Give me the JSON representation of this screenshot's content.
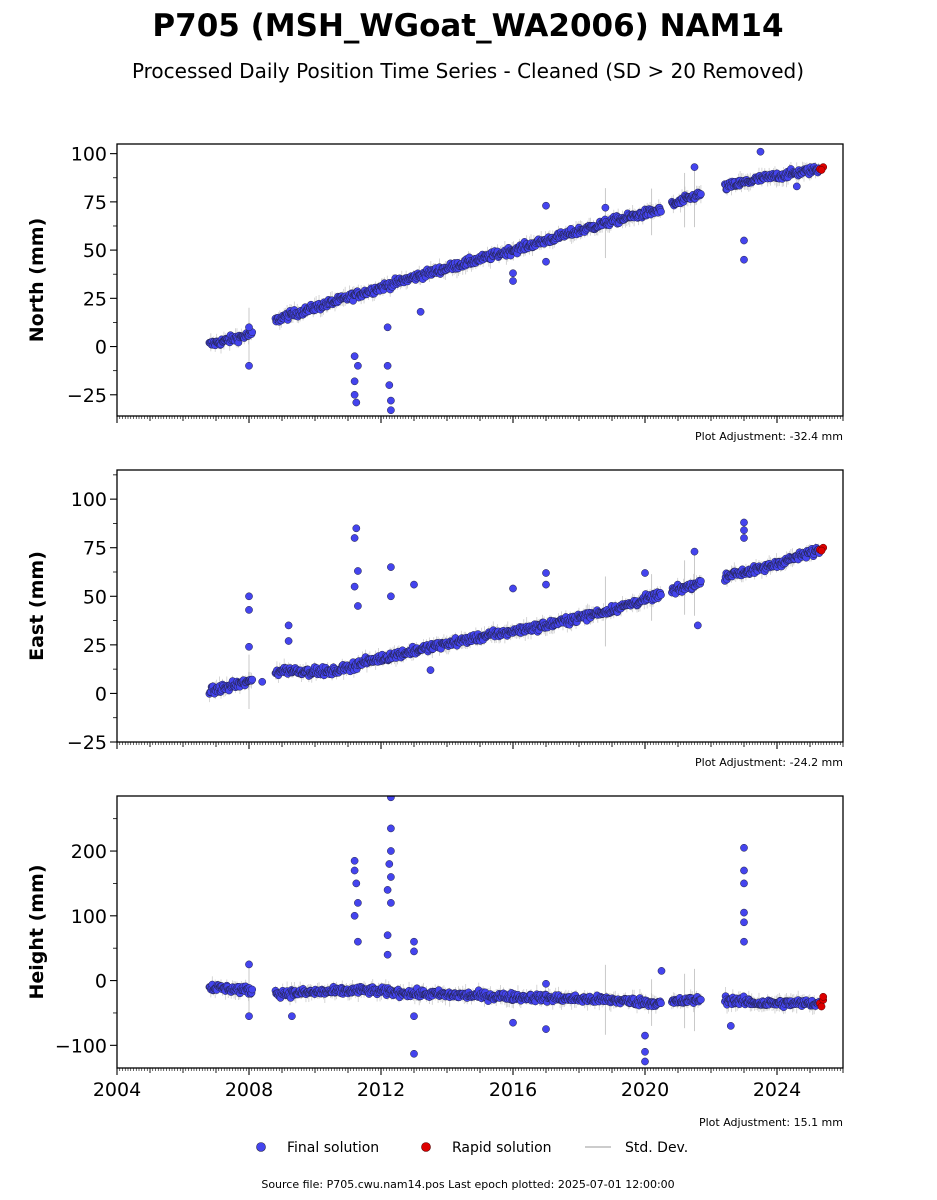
{
  "title": "P705 (MSH_WGoat_WA2006) NAM14",
  "subtitle": "Processed Daily Position Time Series - Cleaned (SD > 20 Removed)",
  "source_text": "Source file: P705.cwu.nam14.pos  Last epoch plotted: 2025-07-01 12:00:00",
  "legend": {
    "final": "Final solution",
    "rapid": "Rapid solution",
    "std": "Std. Dev."
  },
  "colors": {
    "final": "#4444ee",
    "final_edge": "#222244",
    "rapid": "#dd0000",
    "std": "#aaaaaa"
  },
  "chart_data": [
    {
      "type": "scatter",
      "ylabel": "North (mm)",
      "adjustment": "Plot Adjustment: -32.4 mm",
      "xlim": [
        2004,
        2026
      ],
      "ylim": [
        -36,
        105
      ],
      "yticks": [
        -25,
        0,
        25,
        50,
        75,
        100
      ],
      "yticklabels": [
        "−25",
        "0",
        "25",
        "50",
        "75",
        "100"
      ],
      "trend": [
        [
          2006.8,
          1
        ],
        [
          2008.0,
          6
        ],
        [
          2009.0,
          15
        ],
        [
          2011.5,
          28
        ],
        [
          2013.0,
          36
        ],
        [
          2016.0,
          50
        ],
        [
          2019.0,
          65
        ],
        [
          2020.5,
          71
        ],
        [
          2021.5,
          78
        ],
        [
          2022.5,
          83
        ],
        [
          2023.5,
          87
        ],
        [
          2025.3,
          92
        ]
      ],
      "gaps": [
        [
          2008.1,
          2008.8
        ],
        [
          2020.5,
          2020.8
        ],
        [
          2021.7,
          2022.4
        ]
      ],
      "outliers": [
        [
          2008.0,
          -10
        ],
        [
          2008.0,
          10
        ],
        [
          2011.2,
          -5
        ],
        [
          2011.2,
          -18
        ],
        [
          2011.2,
          -25
        ],
        [
          2011.25,
          -29
        ],
        [
          2011.3,
          -10
        ],
        [
          2012.2,
          10
        ],
        [
          2012.2,
          -10
        ],
        [
          2012.25,
          -20
        ],
        [
          2012.3,
          -33
        ],
        [
          2012.3,
          -28
        ],
        [
          2013.2,
          18
        ],
        [
          2016.0,
          38
        ],
        [
          2016.0,
          34
        ],
        [
          2017.0,
          44
        ],
        [
          2017.0,
          73
        ],
        [
          2018.8,
          72
        ],
        [
          2021.5,
          93
        ],
        [
          2023.0,
          45
        ],
        [
          2023.0,
          55
        ],
        [
          2023.5,
          101
        ],
        [
          2024.6,
          83
        ]
      ],
      "rapid": [
        [
          2025.3,
          92
        ],
        [
          2025.4,
          93
        ],
        [
          2025.35,
          91.5
        ]
      ]
    },
    {
      "type": "scatter",
      "ylabel": "East (mm)",
      "adjustment": "Plot Adjustment: -24.2 mm",
      "xlim": [
        2004,
        2026
      ],
      "ylim": [
        -25,
        115
      ],
      "yticks": [
        -25,
        0,
        25,
        50,
        75,
        100
      ],
      "yticklabels": [
        "−25",
        "0",
        "25",
        "50",
        "75",
        "100"
      ],
      "trend": [
        [
          2006.8,
          1
        ],
        [
          2008.0,
          6
        ],
        [
          2009.0,
          12
        ],
        [
          2010.5,
          11
        ],
        [
          2011.5,
          16
        ],
        [
          2013.0,
          22
        ],
        [
          2015.0,
          29
        ],
        [
          2017.0,
          35
        ],
        [
          2019.0,
          43
        ],
        [
          2020.5,
          51
        ],
        [
          2021.5,
          56
        ],
        [
          2022.5,
          61
        ],
        [
          2023.5,
          64
        ],
        [
          2025.3,
          74
        ]
      ],
      "gaps": [
        [
          2008.1,
          2008.8
        ],
        [
          2020.5,
          2020.8
        ],
        [
          2021.7,
          2022.4
        ]
      ],
      "outliers": [
        [
          2008.0,
          50
        ],
        [
          2008.0,
          43
        ],
        [
          2008.0,
          24
        ],
        [
          2008.4,
          6
        ],
        [
          2009.2,
          35
        ],
        [
          2009.2,
          27
        ],
        [
          2011.2,
          80
        ],
        [
          2011.25,
          85
        ],
        [
          2011.3,
          63
        ],
        [
          2011.3,
          45
        ],
        [
          2011.2,
          55
        ],
        [
          2012.3,
          65
        ],
        [
          2012.3,
          50
        ],
        [
          2013.0,
          56
        ],
        [
          2013.5,
          12
        ],
        [
          2016.0,
          54
        ],
        [
          2017.0,
          62
        ],
        [
          2017.0,
          56
        ],
        [
          2020.0,
          62
        ],
        [
          2021.5,
          73
        ],
        [
          2021.6,
          35
        ],
        [
          2023.0,
          88
        ],
        [
          2023.0,
          84
        ],
        [
          2023.0,
          80
        ]
      ],
      "rapid": [
        [
          2025.3,
          74
        ],
        [
          2025.4,
          75
        ],
        [
          2025.35,
          73.5
        ]
      ]
    },
    {
      "type": "scatter",
      "ylabel": "Height (mm)",
      "adjustment": "Plot Adjustment: 15.1 mm",
      "xlim": [
        2004,
        2026
      ],
      "ylim": [
        -135,
        285
      ],
      "yticks": [
        -100,
        0,
        100,
        200
      ],
      "yticklabels": [
        "−100",
        "0",
        "100",
        "200"
      ],
      "xticks": [
        2004,
        2008,
        2012,
        2016,
        2020,
        2024
      ],
      "xticklabels": [
        "2004",
        "2008",
        "2012",
        "2016",
        "2020",
        "2024"
      ],
      "trend": [
        [
          2006.8,
          -10
        ],
        [
          2008.0,
          -15
        ],
        [
          2009.0,
          -20
        ],
        [
          2011.5,
          -15
        ],
        [
          2013.0,
          -20
        ],
        [
          2016.0,
          -25
        ],
        [
          2019.0,
          -30
        ],
        [
          2020.5,
          -35
        ],
        [
          2021.5,
          -30
        ],
        [
          2022.5,
          -30
        ],
        [
          2023.5,
          -35
        ],
        [
          2025.3,
          -35
        ]
      ],
      "gaps": [
        [
          2008.1,
          2008.8
        ],
        [
          2020.5,
          2020.8
        ],
        [
          2021.7,
          2022.4
        ]
      ],
      "outliers": [
        [
          2008.0,
          25
        ],
        [
          2008.0,
          -55
        ],
        [
          2009.3,
          -55
        ],
        [
          2011.2,
          185
        ],
        [
          2011.2,
          170
        ],
        [
          2011.25,
          150
        ],
        [
          2011.3,
          120
        ],
        [
          2011.2,
          100
        ],
        [
          2011.3,
          60
        ],
        [
          2012.3,
          283
        ],
        [
          2012.3,
          235
        ],
        [
          2012.3,
          200
        ],
        [
          2012.25,
          180
        ],
        [
          2012.3,
          160
        ],
        [
          2012.2,
          140
        ],
        [
          2012.3,
          120
        ],
        [
          2012.2,
          70
        ],
        [
          2012.2,
          40
        ],
        [
          2013.0,
          60
        ],
        [
          2013.0,
          45
        ],
        [
          2013.0,
          -113
        ],
        [
          2013.0,
          -55
        ],
        [
          2016.0,
          -65
        ],
        [
          2017.0,
          -75
        ],
        [
          2017.0,
          -5
        ],
        [
          2020.0,
          -85
        ],
        [
          2020.0,
          -110
        ],
        [
          2020.0,
          -125
        ],
        [
          2020.5,
          15
        ],
        [
          2023.0,
          205
        ],
        [
          2023.0,
          170
        ],
        [
          2023.0,
          150
        ],
        [
          2023.0,
          105
        ],
        [
          2023.0,
          90
        ],
        [
          2023.0,
          60
        ],
        [
          2022.6,
          -70
        ]
      ],
      "rapid": [
        [
          2025.3,
          -35
        ],
        [
          2025.4,
          -30
        ],
        [
          2025.35,
          -40
        ],
        [
          2025.4,
          -25
        ]
      ]
    }
  ]
}
